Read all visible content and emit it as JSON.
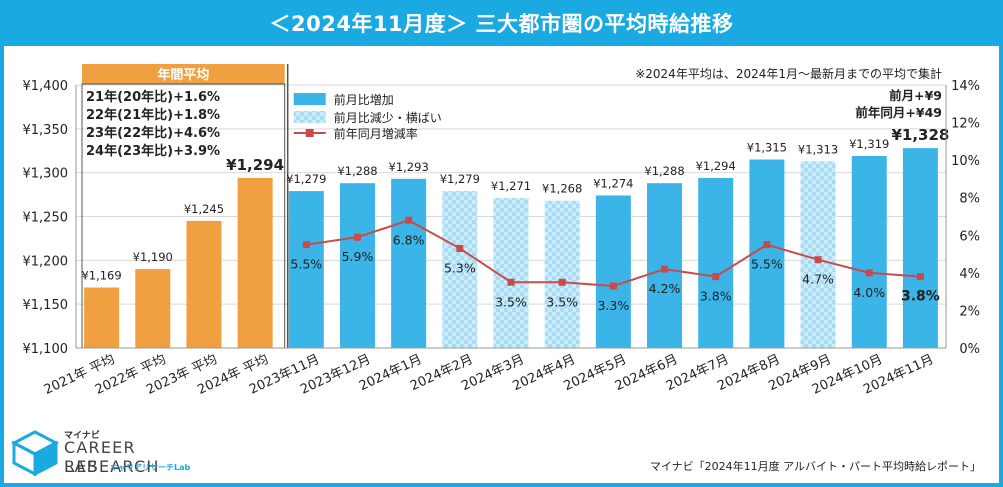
{
  "title": "＜2024年11月度＞ 三大都市圏の平均時給推移",
  "source": "マイナビ「2024年11月度 アルバイト・パート平均時給レポート」",
  "logo": {
    "small": "マイナビ",
    "main": "CAREER RESEARCH",
    "lab": "LAB",
    "kana": "キャリアリサーチLab"
  },
  "colors": {
    "frame": "#1aa9e0",
    "annual_bar": "#f0a040",
    "increase_bar": "#3bb4e8",
    "decrease_bar": "#a7dcf5",
    "yoy_line": "#c94a4a"
  },
  "chart_data": {
    "type": "bar",
    "categories": [
      "2021年 平均",
      "2022年 平均",
      "2023年 平均",
      "2024年 平均",
      "2023年11月",
      "2023年12月",
      "2024年1月",
      "2024年2月",
      "2024年3月",
      "2024年4月",
      "2024年5月",
      "2024年6月",
      "2024年7月",
      "2024年8月",
      "2024年9月",
      "2024年10月",
      "2024年11月"
    ],
    "series": [
      {
        "name": "年間平均",
        "kind": "annual",
        "values": [
          1169,
          1190,
          1245,
          1294,
          null,
          null,
          null,
          null,
          null,
          null,
          null,
          null,
          null,
          null,
          null,
          null,
          null
        ],
        "labels": [
          "¥1,169",
          "¥1,190",
          "¥1,245",
          "¥1,294",
          null,
          null,
          null,
          null,
          null,
          null,
          null,
          null,
          null,
          null,
          null,
          null,
          null
        ]
      },
      {
        "name": "前月比増加",
        "kind": "increase",
        "values": [
          null,
          null,
          null,
          null,
          1279,
          1288,
          1293,
          null,
          null,
          null,
          1274,
          1288,
          1294,
          1315,
          null,
          1319,
          1328
        ],
        "labels": [
          null,
          null,
          null,
          null,
          "¥1,279",
          "¥1,288",
          "¥1,293",
          null,
          null,
          null,
          "¥1,274",
          "¥1,288",
          "¥1,294",
          "¥1,315",
          null,
          "¥1,319",
          "¥1,328"
        ]
      },
      {
        "name": "前月比減少・横ばい",
        "kind": "decrease",
        "values": [
          null,
          null,
          null,
          null,
          null,
          null,
          null,
          1279,
          1271,
          1268,
          null,
          null,
          null,
          null,
          1313,
          null,
          null
        ],
        "labels": [
          null,
          null,
          null,
          null,
          null,
          null,
          null,
          "¥1,279",
          "¥1,271",
          "¥1,268",
          null,
          null,
          null,
          null,
          "¥1,313",
          null,
          null
        ]
      },
      {
        "name": "前年同月増減率",
        "kind": "line",
        "axis": "right",
        "values": [
          null,
          null,
          null,
          null,
          5.5,
          5.9,
          6.8,
          5.3,
          3.5,
          3.5,
          3.3,
          4.2,
          3.8,
          5.5,
          4.7,
          4.0,
          3.8
        ],
        "labels": [
          null,
          null,
          null,
          null,
          "5.5%",
          "5.9%",
          "6.8%",
          "5.3%",
          "3.5%",
          "3.5%",
          "3.3%",
          "4.2%",
          "3.8%",
          "5.5%",
          "4.7%",
          "4.0%",
          "3.8%"
        ]
      }
    ],
    "ylim": [
      1100,
      1400
    ],
    "yticks": [
      "¥1,100",
      "¥1,150",
      "¥1,200",
      "¥1,250",
      "¥1,300",
      "¥1,350",
      "¥1,400"
    ],
    "y2lim": [
      0,
      14
    ],
    "y2ticks": [
      "0%",
      "2%",
      "4%",
      "6%",
      "8%",
      "10%",
      "12%",
      "14%"
    ],
    "annual_box_header": "年間平均",
    "annual_notes": [
      "21年(20年比)+1.6%",
      "22年(21年比)+1.8%",
      "23年(22年比)+4.6%",
      "24年(23年比)+3.9%"
    ],
    "note_top": "※2024年平均は、2024年1月～最新月までの平均で集計",
    "note_mom": "前月+¥9",
    "note_yoy": "前年同月+¥49",
    "legend_position": "top-left",
    "grid": true
  }
}
